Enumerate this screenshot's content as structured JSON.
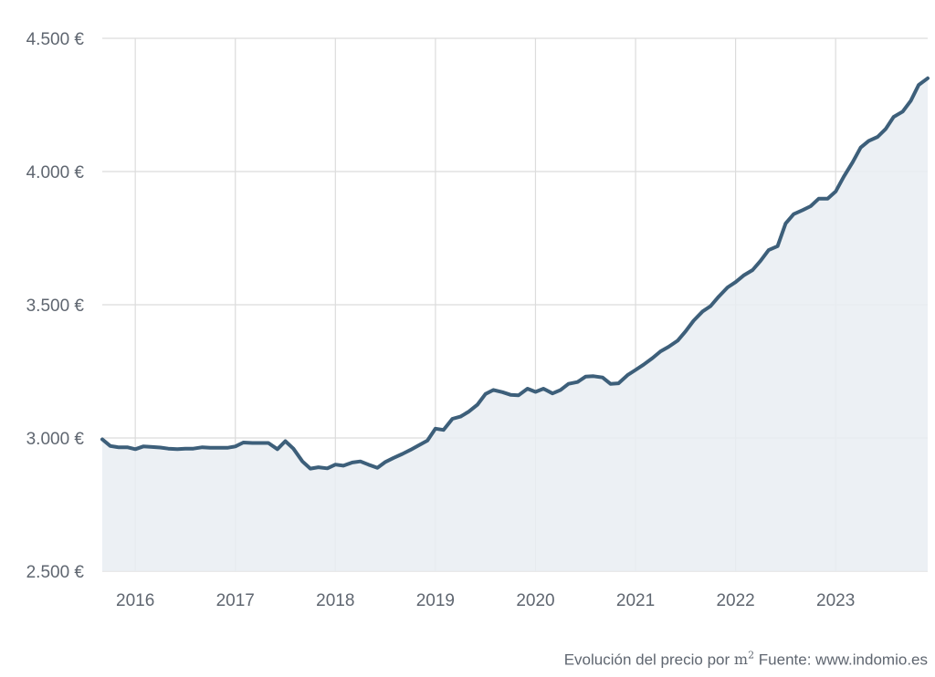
{
  "chart_data": {
    "type": "area",
    "title": "",
    "xlabel": "",
    "ylabel": "",
    "ylim": [
      2500,
      4500
    ],
    "xlim": [
      2015.67,
      2023.92
    ],
    "y_ticks": [
      {
        "value": 4500,
        "label": "4.500 €"
      },
      {
        "value": 4000,
        "label": "4.000 €"
      },
      {
        "value": 3500,
        "label": "3.500 €"
      },
      {
        "value": 3000,
        "label": "3.000 €"
      },
      {
        "value": 2500,
        "label": "2.500 €"
      }
    ],
    "x_ticks": [
      {
        "value": 2016,
        "label": "2016"
      },
      {
        "value": 2017,
        "label": "2017"
      },
      {
        "value": 2018,
        "label": "2018"
      },
      {
        "value": 2019,
        "label": "2019"
      },
      {
        "value": 2020,
        "label": "2020"
      },
      {
        "value": 2021,
        "label": "2021"
      },
      {
        "value": 2022,
        "label": "2022"
      },
      {
        "value": 2023,
        "label": "2023"
      }
    ],
    "grid": true,
    "legend": "none",
    "colors": {
      "line": "#3d5f7a",
      "fill": "#e9edf2",
      "grid": "#dcdcdc",
      "axis_text": "#5f6670"
    },
    "series": [
      {
        "x": [
          2015.67,
          2015.75,
          2015.83,
          2015.92,
          2016.0,
          2016.08,
          2016.17,
          2016.25,
          2016.33,
          2016.42,
          2016.5,
          2016.58,
          2016.67,
          2016.75,
          2016.83,
          2016.92,
          2017.0,
          2017.08,
          2017.17,
          2017.25,
          2017.33,
          2017.42,
          2017.5,
          2017.58,
          2017.67,
          2017.75,
          2017.83,
          2017.92,
          2018.0,
          2018.08,
          2018.17,
          2018.25,
          2018.33,
          2018.42,
          2018.5,
          2018.58,
          2018.67,
          2018.75,
          2018.83,
          2018.92,
          2019.0,
          2019.08,
          2019.17,
          2019.25,
          2019.33,
          2019.42,
          2019.5,
          2019.58,
          2019.67,
          2019.75,
          2019.83,
          2019.92,
          2020.0,
          2020.08,
          2020.17,
          2020.25,
          2020.33,
          2020.42,
          2020.5,
          2020.58,
          2020.67,
          2020.75,
          2020.83,
          2020.92,
          2021.0,
          2021.08,
          2021.17,
          2021.25,
          2021.33,
          2021.42,
          2021.5,
          2021.58,
          2021.67,
          2021.75,
          2021.83,
          2021.92,
          2022.0,
          2022.08,
          2022.17,
          2022.25,
          2022.33,
          2022.42,
          2022.5,
          2022.58,
          2022.67,
          2022.75,
          2022.83,
          2022.92,
          2023.0,
          2023.08,
          2023.17,
          2023.25,
          2023.33,
          2023.42,
          2023.5,
          2023.58,
          2023.67,
          2023.75,
          2023.83,
          2023.92
        ],
        "values": [
          2995,
          2970,
          2965,
          2965,
          2958,
          2968,
          2966,
          2964,
          2960,
          2958,
          2960,
          2960,
          2965,
          2963,
          2963,
          2963,
          2968,
          2983,
          2981,
          2981,
          2981,
          2958,
          2988,
          2960,
          2912,
          2885,
          2890,
          2886,
          2900,
          2896,
          2908,
          2912,
          2900,
          2888,
          2910,
          2925,
          2940,
          2955,
          2972,
          2990,
          3035,
          3030,
          3072,
          3080,
          3098,
          3125,
          3165,
          3180,
          3172,
          3162,
          3160,
          3185,
          3173,
          3185,
          3167,
          3180,
          3203,
          3210,
          3230,
          3232,
          3227,
          3203,
          3205,
          3236,
          3255,
          3275,
          3300,
          3325,
          3342,
          3365,
          3400,
          3440,
          3475,
          3495,
          3530,
          3565,
          3585,
          3610,
          3630,
          3665,
          3705,
          3720,
          3805,
          3840,
          3855,
          3870,
          3898,
          3898,
          3925,
          3980,
          4035,
          4090,
          4115,
          4130,
          4160,
          4205,
          4225,
          4265,
          4325,
          4350
        ]
      }
    ]
  },
  "caption": {
    "text_before": "Evolución del precio por",
    "unit_base": "m",
    "unit_exp": "2",
    "text_after": "Fuente: www.indomio.es"
  }
}
